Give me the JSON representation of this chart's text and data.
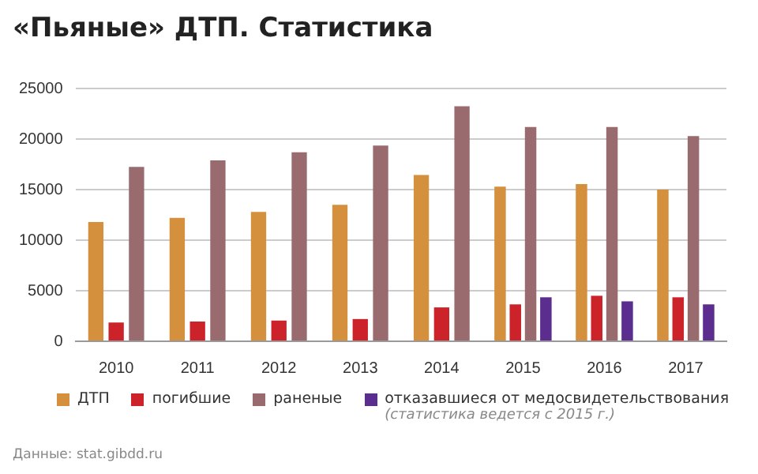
{
  "chart_data": {
    "type": "bar",
    "title": "«Пьяные» ДТП. Статистика",
    "categories": [
      "2010",
      "2011",
      "2012",
      "2013",
      "2014",
      "2015",
      "2016",
      "2017"
    ],
    "series": [
      {
        "name": "ДТП",
        "color": "#d4903c",
        "values": [
          11800,
          12200,
          12800,
          13500,
          16450,
          15300,
          15550,
          15000
        ]
      },
      {
        "name": "погибшие",
        "color": "#cc2229",
        "values": [
          1850,
          1950,
          2050,
          2200,
          3350,
          3650,
          4500,
          4350
        ]
      },
      {
        "name": "раненые",
        "color": "#9a6b6e",
        "values": [
          17250,
          17900,
          18700,
          19350,
          23250,
          21200,
          21200,
          20300
        ]
      },
      {
        "name": "отказавшиеся от медосвидетельствования",
        "color": "#5b2d8e",
        "values": [
          null,
          null,
          null,
          null,
          null,
          4350,
          3950,
          3650
        ]
      }
    ],
    "ylim": [
      0,
      25000
    ],
    "yticks": [
      0,
      5000,
      10000,
      15000,
      20000,
      25000
    ],
    "grid": "y",
    "legend": "bottom",
    "annotations": [
      "(статистика ведется с 2015 г.)",
      "Данные: stat.gibdd.ru"
    ]
  }
}
